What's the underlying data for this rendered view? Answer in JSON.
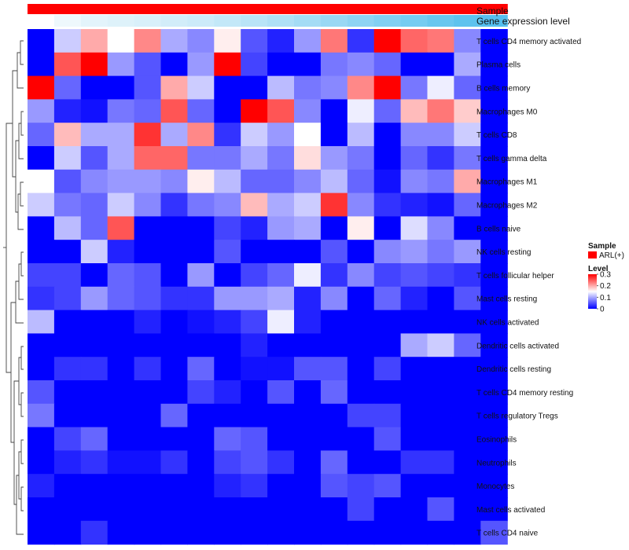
{
  "chart_data": {
    "type": "heatmap",
    "title": "",
    "annotation_tracks": [
      {
        "name": "Sample",
        "label": "Sample"
      },
      {
        "name": "Gene expression level",
        "label": "Gene expression level"
      }
    ],
    "rows": [
      "T cells CD4 memory activated",
      "Plasma cells",
      "B cells memory",
      "Macrophages M0",
      "T cells CD8",
      "T cells gamma delta",
      "Macrophages M1",
      "Macrophages M2",
      "B cells naive",
      "NK cells resting",
      "T cells follicular helper",
      "Mast cells resting",
      "NK cells activated",
      "Dendritic cells activated",
      "Dendritic cells resting",
      "T cells CD4 memory resting",
      "T cells regulatory  Tregs",
      "Eosinophils",
      "Neutrophils",
      "Monocytes",
      "Mast cells activated",
      "T cells CD4 naive"
    ],
    "n_columns": 18,
    "values": [
      [
        0.0,
        0.12,
        0.2,
        0.15,
        0.22,
        0.1,
        0.08,
        0.16,
        0.05,
        0.02,
        0.09,
        0.23,
        0.03,
        0.3,
        0.24,
        0.23,
        0.08,
        0
      ],
      [
        0.0,
        0.25,
        0.3,
        0.09,
        0.05,
        0.0,
        0.09,
        0.3,
        0.04,
        0.0,
        0.0,
        0.07,
        0.08,
        0.06,
        0.0,
        0.0,
        0.1,
        0
      ],
      [
        0.3,
        0.06,
        0.0,
        0.0,
        0.05,
        0.2,
        0.12,
        0.0,
        0.0,
        0.11,
        0.07,
        0.08,
        0.22,
        0.3,
        0.07,
        0.14,
        0.06,
        0
      ],
      [
        0.09,
        0.02,
        0.01,
        0.07,
        0.06,
        0.25,
        0.06,
        0.0,
        0.3,
        0.25,
        0.08,
        0.0,
        0.14,
        0.06,
        0.19,
        0.23,
        0.18,
        0
      ],
      [
        0.06,
        0.19,
        0.1,
        0.1,
        0.27,
        0.1,
        0.22,
        0.03,
        0.12,
        0.09,
        0.15,
        0.0,
        0.11,
        0.0,
        0.08,
        0.08,
        0.12,
        0
      ],
      [
        0.0,
        0.12,
        0.05,
        0.1,
        0.24,
        0.24,
        0.07,
        0.07,
        0.1,
        0.07,
        0.17,
        0.09,
        0.07,
        0.0,
        0.06,
        0.03,
        0.07,
        0
      ],
      [
        0.15,
        0.05,
        0.08,
        0.09,
        0.09,
        0.08,
        0.16,
        0.11,
        0.06,
        0.06,
        0.08,
        0.11,
        0.06,
        0.01,
        0.08,
        0.07,
        0.2,
        0
      ],
      [
        0.12,
        0.07,
        0.06,
        0.12,
        0.08,
        0.03,
        0.07,
        0.08,
        0.19,
        0.1,
        0.12,
        0.27,
        0.08,
        0.03,
        0.02,
        0.01,
        0.06,
        0
      ],
      [
        0.0,
        0.11,
        0.06,
        0.25,
        0.0,
        0.0,
        0.0,
        0.04,
        0.02,
        0.09,
        0.1,
        0.0,
        0.16,
        0.0,
        0.13,
        0.08,
        0.0,
        0
      ],
      [
        0.0,
        0.0,
        0.12,
        0.02,
        0.0,
        0.0,
        0.0,
        0.05,
        0.0,
        0.0,
        0.0,
        0.05,
        0.0,
        0.08,
        0.09,
        0.07,
        0.09,
        0
      ],
      [
        0.04,
        0.04,
        0.0,
        0.06,
        0.05,
        0.0,
        0.09,
        0.0,
        0.04,
        0.06,
        0.14,
        0.03,
        0.08,
        0.04,
        0.05,
        0.04,
        0.03,
        0
      ],
      [
        0.03,
        0.04,
        0.09,
        0.06,
        0.05,
        0.03,
        0.03,
        0.09,
        0.09,
        0.1,
        0.02,
        0.08,
        0.0,
        0.06,
        0.02,
        0.0,
        0.05,
        0
      ],
      [
        0.11,
        0.0,
        0.0,
        0.0,
        0.02,
        0.0,
        0.01,
        0.02,
        0.04,
        0.14,
        0.02,
        0.0,
        0.0,
        0.0,
        0.0,
        0.0,
        0.0,
        0
      ],
      [
        0.0,
        0.0,
        0.0,
        0.0,
        0.0,
        0.0,
        0.0,
        0.0,
        0.02,
        0.0,
        0.0,
        0.0,
        0.0,
        0.0,
        0.1,
        0.12,
        0.06,
        0
      ],
      [
        0.0,
        0.03,
        0.03,
        0.0,
        0.03,
        0.0,
        0.06,
        0.0,
        0.01,
        0.01,
        0.05,
        0.05,
        0.0,
        0.04,
        0.0,
        0.0,
        0.0,
        0
      ],
      [
        0.05,
        0.0,
        0.0,
        0.0,
        0.0,
        0.0,
        0.04,
        0.02,
        0.0,
        0.05,
        0.0,
        0.06,
        0.0,
        0.0,
        0.0,
        0.0,
        0.0,
        0
      ],
      [
        0.07,
        0.0,
        0.0,
        0.0,
        0.0,
        0.06,
        0.0,
        0.0,
        0.0,
        0.0,
        0.0,
        0.0,
        0.04,
        0.04,
        0.0,
        0.0,
        0.0,
        0
      ],
      [
        0.0,
        0.04,
        0.06,
        0.0,
        0.0,
        0.0,
        0.0,
        0.06,
        0.05,
        0.0,
        0.0,
        0.0,
        0.0,
        0.05,
        0.0,
        0.0,
        0.0,
        0
      ],
      [
        0.0,
        0.02,
        0.03,
        0.01,
        0.01,
        0.03,
        0.0,
        0.04,
        0.05,
        0.03,
        0.0,
        0.06,
        0.0,
        0.0,
        0.03,
        0.03,
        0.0,
        0
      ],
      [
        0.02,
        0.0,
        0.0,
        0.0,
        0.0,
        0.0,
        0.0,
        0.02,
        0.03,
        0.0,
        0.0,
        0.05,
        0.04,
        0.05,
        0.0,
        0.0,
        0.0,
        0
      ],
      [
        0.0,
        0.0,
        0.0,
        0.0,
        0.0,
        0.0,
        0.0,
        0.0,
        0.0,
        0.0,
        0.0,
        0.0,
        0.04,
        0.0,
        0.0,
        0.05,
        0.0,
        0
      ],
      [
        0.0,
        0.0,
        0.03,
        0.0,
        0.0,
        0.0,
        0.0,
        0.0,
        0.0,
        0.0,
        0.0,
        0.0,
        0.0,
        0.0,
        0.0,
        0.0,
        0.0,
        0.05
      ]
    ],
    "sample_colors": [
      "#ff0000",
      "#ff0000",
      "#ff0000",
      "#ff0000",
      "#ff0000",
      "#ff0000",
      "#ff0000",
      "#ff0000",
      "#ff0000",
      "#ff0000",
      "#ff0000",
      "#ff0000",
      "#ff0000",
      "#ff0000",
      "#ff0000",
      "#ff0000",
      "#ff0000",
      "#ff0000"
    ],
    "expression_colors": [
      "#ffffff",
      "#eef8fc",
      "#e3f4fb",
      "#def2fa",
      "#d9f0fa",
      "#d2edf9",
      "#ccebf9",
      "#c3e8f8",
      "#b9e4f7",
      "#afe0f6",
      "#a4dcf5",
      "#99d8f4",
      "#8ed4f3",
      "#82d0f2",
      "#76ccf1",
      "#6ac7ef",
      "#5ec3ee",
      "#55bfee"
    ],
    "color_scale": {
      "low": "#0000ff",
      "mid": "#ffffff",
      "high": "#ff0000",
      "min": 0,
      "mid_value": 0.15,
      "max": 0.3
    },
    "legends": {
      "sample": {
        "title": "Sample",
        "items": [
          {
            "label": "ARL(+)",
            "color": "#ff0000"
          }
        ]
      },
      "level": {
        "title": "Level",
        "ticks": [
          "0.3",
          "0.2",
          "0.1",
          "0"
        ],
        "tick_values": [
          0.3,
          0.2,
          0.1,
          0
        ]
      }
    },
    "dendrogram": "row-clustering"
  }
}
